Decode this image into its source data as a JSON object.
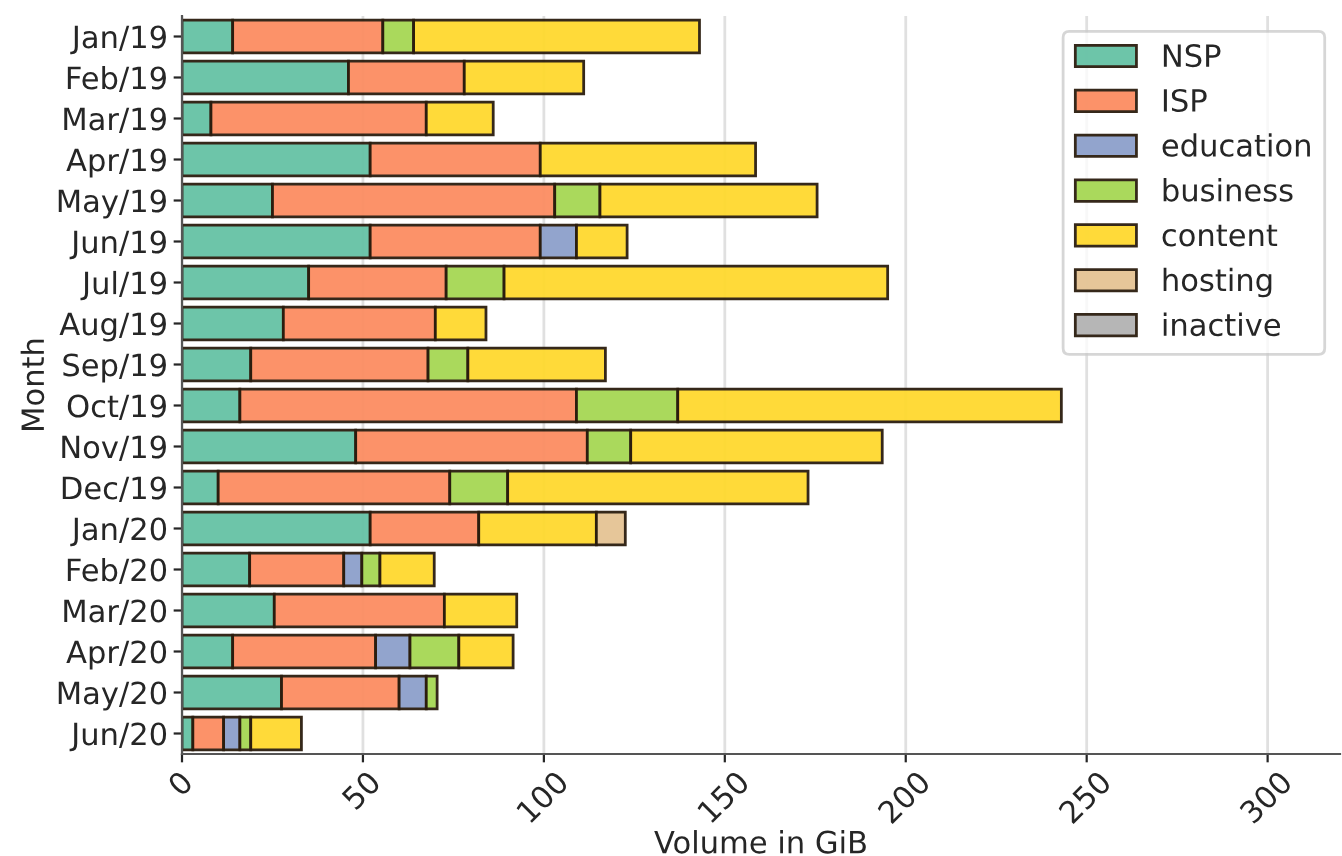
{
  "chart_data": {
    "type": "bar",
    "orientation": "horizontal",
    "stacked": true,
    "xlabel": "Volume in GiB",
    "ylabel": "Month",
    "categories": [
      "Jan/19",
      "Feb/19",
      "Mar/19",
      "Apr/19",
      "May/19",
      "Jun/19",
      "Jul/19",
      "Aug/19",
      "Sep/19",
      "Oct/19",
      "Nov/19",
      "Dec/19",
      "Jan/20",
      "Feb/20",
      "Mar/20",
      "Apr/20",
      "May/20",
      "Jun/20"
    ],
    "series": [
      {
        "name": "NSP",
        "color": "#66c2a5",
        "values": [
          14,
          46,
          8,
          52,
          25,
          52,
          35,
          28,
          19,
          16,
          48,
          10,
          52,
          18.7,
          25.5,
          14,
          27.5,
          3
        ]
      },
      {
        "name": "ISP",
        "color": "#fc8d62",
        "values": [
          41.5,
          32,
          59.5,
          47,
          78,
          47,
          38,
          42,
          49,
          93,
          64,
          64,
          30,
          26,
          47,
          39.5,
          32.5,
          8.5
        ]
      },
      {
        "name": "education",
        "color": "#8da0cb",
        "values": [
          null,
          null,
          null,
          null,
          null,
          10,
          null,
          null,
          null,
          null,
          null,
          null,
          null,
          5,
          null,
          9.5,
          7.5,
          4.5
        ]
      },
      {
        "name": "business",
        "color": "#a6d854",
        "values": [
          8.5,
          null,
          null,
          null,
          12.5,
          null,
          16,
          null,
          11,
          28,
          12,
          16,
          null,
          5,
          null,
          13.5,
          3,
          3
        ]
      },
      {
        "name": "content",
        "color": "#ffd92f",
        "values": [
          79,
          33,
          18.5,
          59.5,
          60,
          14,
          106,
          14,
          38,
          106,
          69.5,
          83,
          32.5,
          15,
          20,
          15,
          null,
          14
        ]
      },
      {
        "name": "hosting",
        "color": "#e5c494",
        "values": [
          null,
          null,
          null,
          null,
          null,
          null,
          null,
          null,
          null,
          null,
          null,
          null,
          8,
          null,
          null,
          null,
          null,
          null
        ]
      },
      {
        "name": "inactive",
        "color": "#b3b3b3",
        "values": [
          null,
          null,
          null,
          null,
          null,
          null,
          null,
          null,
          null,
          null,
          null,
          null,
          null,
          null,
          null,
          null,
          null,
          null
        ]
      }
    ],
    "xlim": [
      0,
      320
    ],
    "xticks": [
      0,
      50,
      100,
      150,
      200,
      250,
      300
    ],
    "grid": "x",
    "legend": "top right"
  }
}
